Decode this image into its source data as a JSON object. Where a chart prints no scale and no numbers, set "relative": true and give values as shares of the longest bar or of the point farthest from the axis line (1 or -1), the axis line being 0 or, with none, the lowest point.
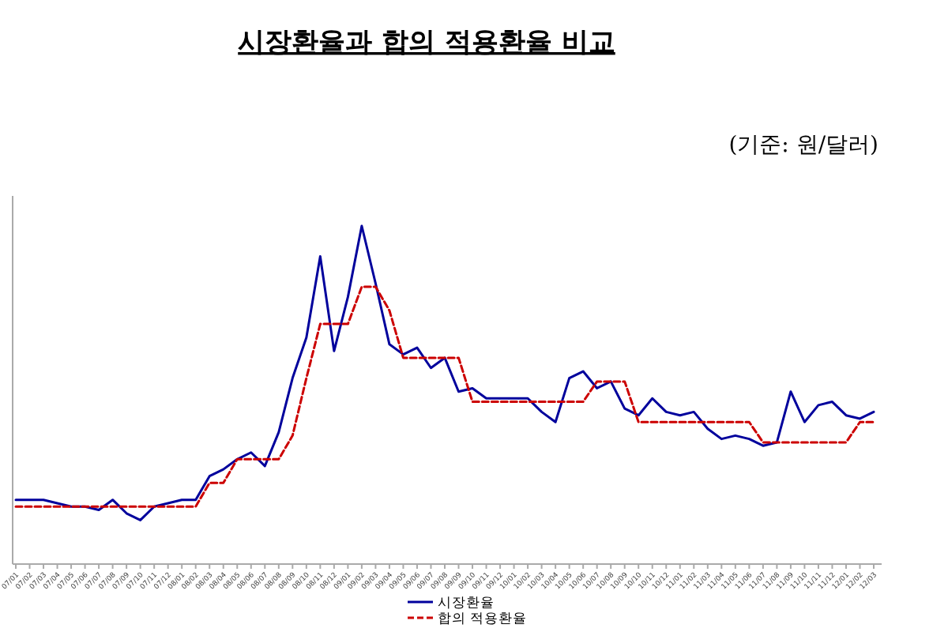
{
  "chart_data": {
    "type": "line",
    "title": "시장환율과 합의 적용환율 비교",
    "annotations": [
      "(기준: 원/달러)"
    ],
    "relative": true,
    "legend": "bottom",
    "marker": "none",
    "categories": [
      "07/01",
      "07/02",
      "07/03",
      "07/04",
      "07/05",
      "07/06",
      "07/07",
      "07/08",
      "07/09",
      "07/10",
      "07/11",
      "07/12",
      "08/01",
      "08/02",
      "08/03",
      "08/04",
      "08/05",
      "08/06",
      "08/07",
      "08/08",
      "08/09",
      "08/10",
      "08/11",
      "08/12",
      "09/01",
      "09/02",
      "09/03",
      "09/04",
      "09/05",
      "09/06",
      "09/07",
      "09/08",
      "09/09",
      "09/10",
      "09/11",
      "09/12",
      "10/01",
      "10/02",
      "10/03",
      "10/04",
      "10/05",
      "10/06",
      "10/07",
      "10/08",
      "10/09",
      "10/10",
      "10/11",
      "10/12",
      "11/01",
      "11/02",
      "11/03",
      "11/04",
      "11/05",
      "11/06",
      "11/07",
      "11/08",
      "11/09",
      "11/10",
      "11/11",
      "11/12",
      "12/01",
      "12/02",
      "12/03"
    ],
    "series": [
      {
        "name": "시장환율",
        "color": "#00009c",
        "line_style": "solid",
        "values": [
          0.19,
          0.19,
          0.19,
          0.18,
          0.17,
          0.17,
          0.16,
          0.19,
          0.15,
          0.13,
          0.17,
          0.18,
          0.19,
          0.19,
          0.26,
          0.28,
          0.31,
          0.33,
          0.29,
          0.39,
          0.55,
          0.67,
          0.91,
          0.63,
          0.79,
          1,
          0.83,
          0.65,
          0.62,
          0.64,
          0.58,
          0.61,
          0.51,
          0.52,
          0.49,
          0.49,
          0.49,
          0.49,
          0.45,
          0.42,
          0.55,
          0.57,
          0.52,
          0.54,
          0.46,
          0.44,
          0.49,
          0.45,
          0.44,
          0.45,
          0.4,
          0.37,
          0.38,
          0.37,
          0.35,
          0.36,
          0.51,
          0.42,
          0.47,
          0.48,
          0.44,
          0.43,
          0.45
        ]
      },
      {
        "name": "합의 적용환율",
        "color": "#cc0000",
        "line_style": "dashed",
        "values": [
          0.17,
          0.17,
          0.17,
          0.17,
          0.17,
          0.17,
          0.17,
          0.17,
          0.17,
          0.17,
          0.17,
          0.17,
          0.17,
          0.17,
          0.24,
          0.24,
          0.31,
          0.31,
          0.31,
          0.31,
          0.38,
          0.55,
          0.71,
          0.71,
          0.71,
          0.82,
          0.82,
          0.75,
          0.61,
          0.61,
          0.61,
          0.61,
          0.61,
          0.48,
          0.48,
          0.48,
          0.48,
          0.48,
          0.48,
          0.48,
          0.48,
          0.48,
          0.54,
          0.54,
          0.54,
          0.42,
          0.42,
          0.42,
          0.42,
          0.42,
          0.42,
          0.42,
          0.42,
          0.42,
          0.36,
          0.36,
          0.36,
          0.36,
          0.36,
          0.36,
          0.36,
          0.42,
          0.42
        ]
      }
    ]
  }
}
